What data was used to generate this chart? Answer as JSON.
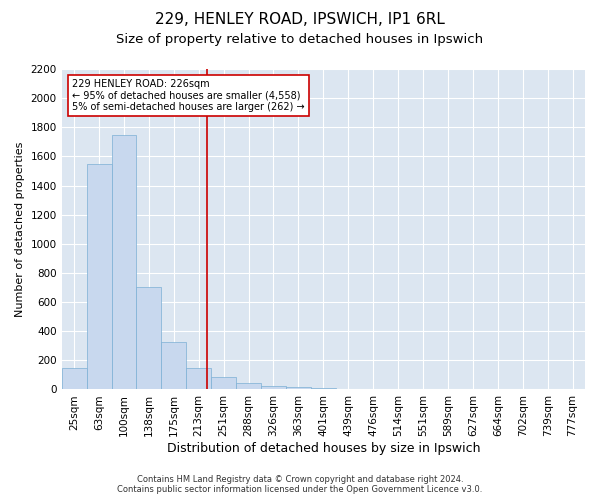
{
  "title1": "229, HENLEY ROAD, IPSWICH, IP1 6RL",
  "title2": "Size of property relative to detached houses in Ipswich",
  "xlabel": "Distribution of detached houses by size in Ipswich",
  "ylabel": "Number of detached properties",
  "categories": [
    "25sqm",
    "63sqm",
    "100sqm",
    "138sqm",
    "175sqm",
    "213sqm",
    "251sqm",
    "288sqm",
    "326sqm",
    "363sqm",
    "401sqm",
    "439sqm",
    "476sqm",
    "514sqm",
    "551sqm",
    "589sqm",
    "627sqm",
    "664sqm",
    "702sqm",
    "739sqm",
    "777sqm"
  ],
  "values": [
    150,
    1550,
    1750,
    700,
    325,
    150,
    85,
    45,
    25,
    15,
    10,
    5,
    3,
    2,
    1,
    1,
    0,
    0,
    0,
    0,
    0
  ],
  "bar_color": "#c8d8ee",
  "bar_edge_color": "#7bafd4",
  "vline_color": "#cc0000",
  "ylim": [
    0,
    2200
  ],
  "yticks": [
    0,
    200,
    400,
    600,
    800,
    1000,
    1200,
    1400,
    1600,
    1800,
    2000,
    2200
  ],
  "annotation_text": "229 HENLEY ROAD: 226sqm\n← 95% of detached houses are smaller (4,558)\n5% of semi-detached houses are larger (262) →",
  "annotation_box_color": "#ffffff",
  "annotation_box_edge": "#cc0000",
  "footer1": "Contains HM Land Registry data © Crown copyright and database right 2024.",
  "footer2": "Contains public sector information licensed under the Open Government Licence v3.0.",
  "fig_bg_color": "#ffffff",
  "plot_bg_color": "#dce6f1",
  "grid_color": "#ffffff",
  "title1_fontsize": 11,
  "title2_fontsize": 9.5,
  "xlabel_fontsize": 9,
  "ylabel_fontsize": 8,
  "tick_fontsize": 7.5,
  "annotation_fontsize": 7,
  "footer_fontsize": 6
}
